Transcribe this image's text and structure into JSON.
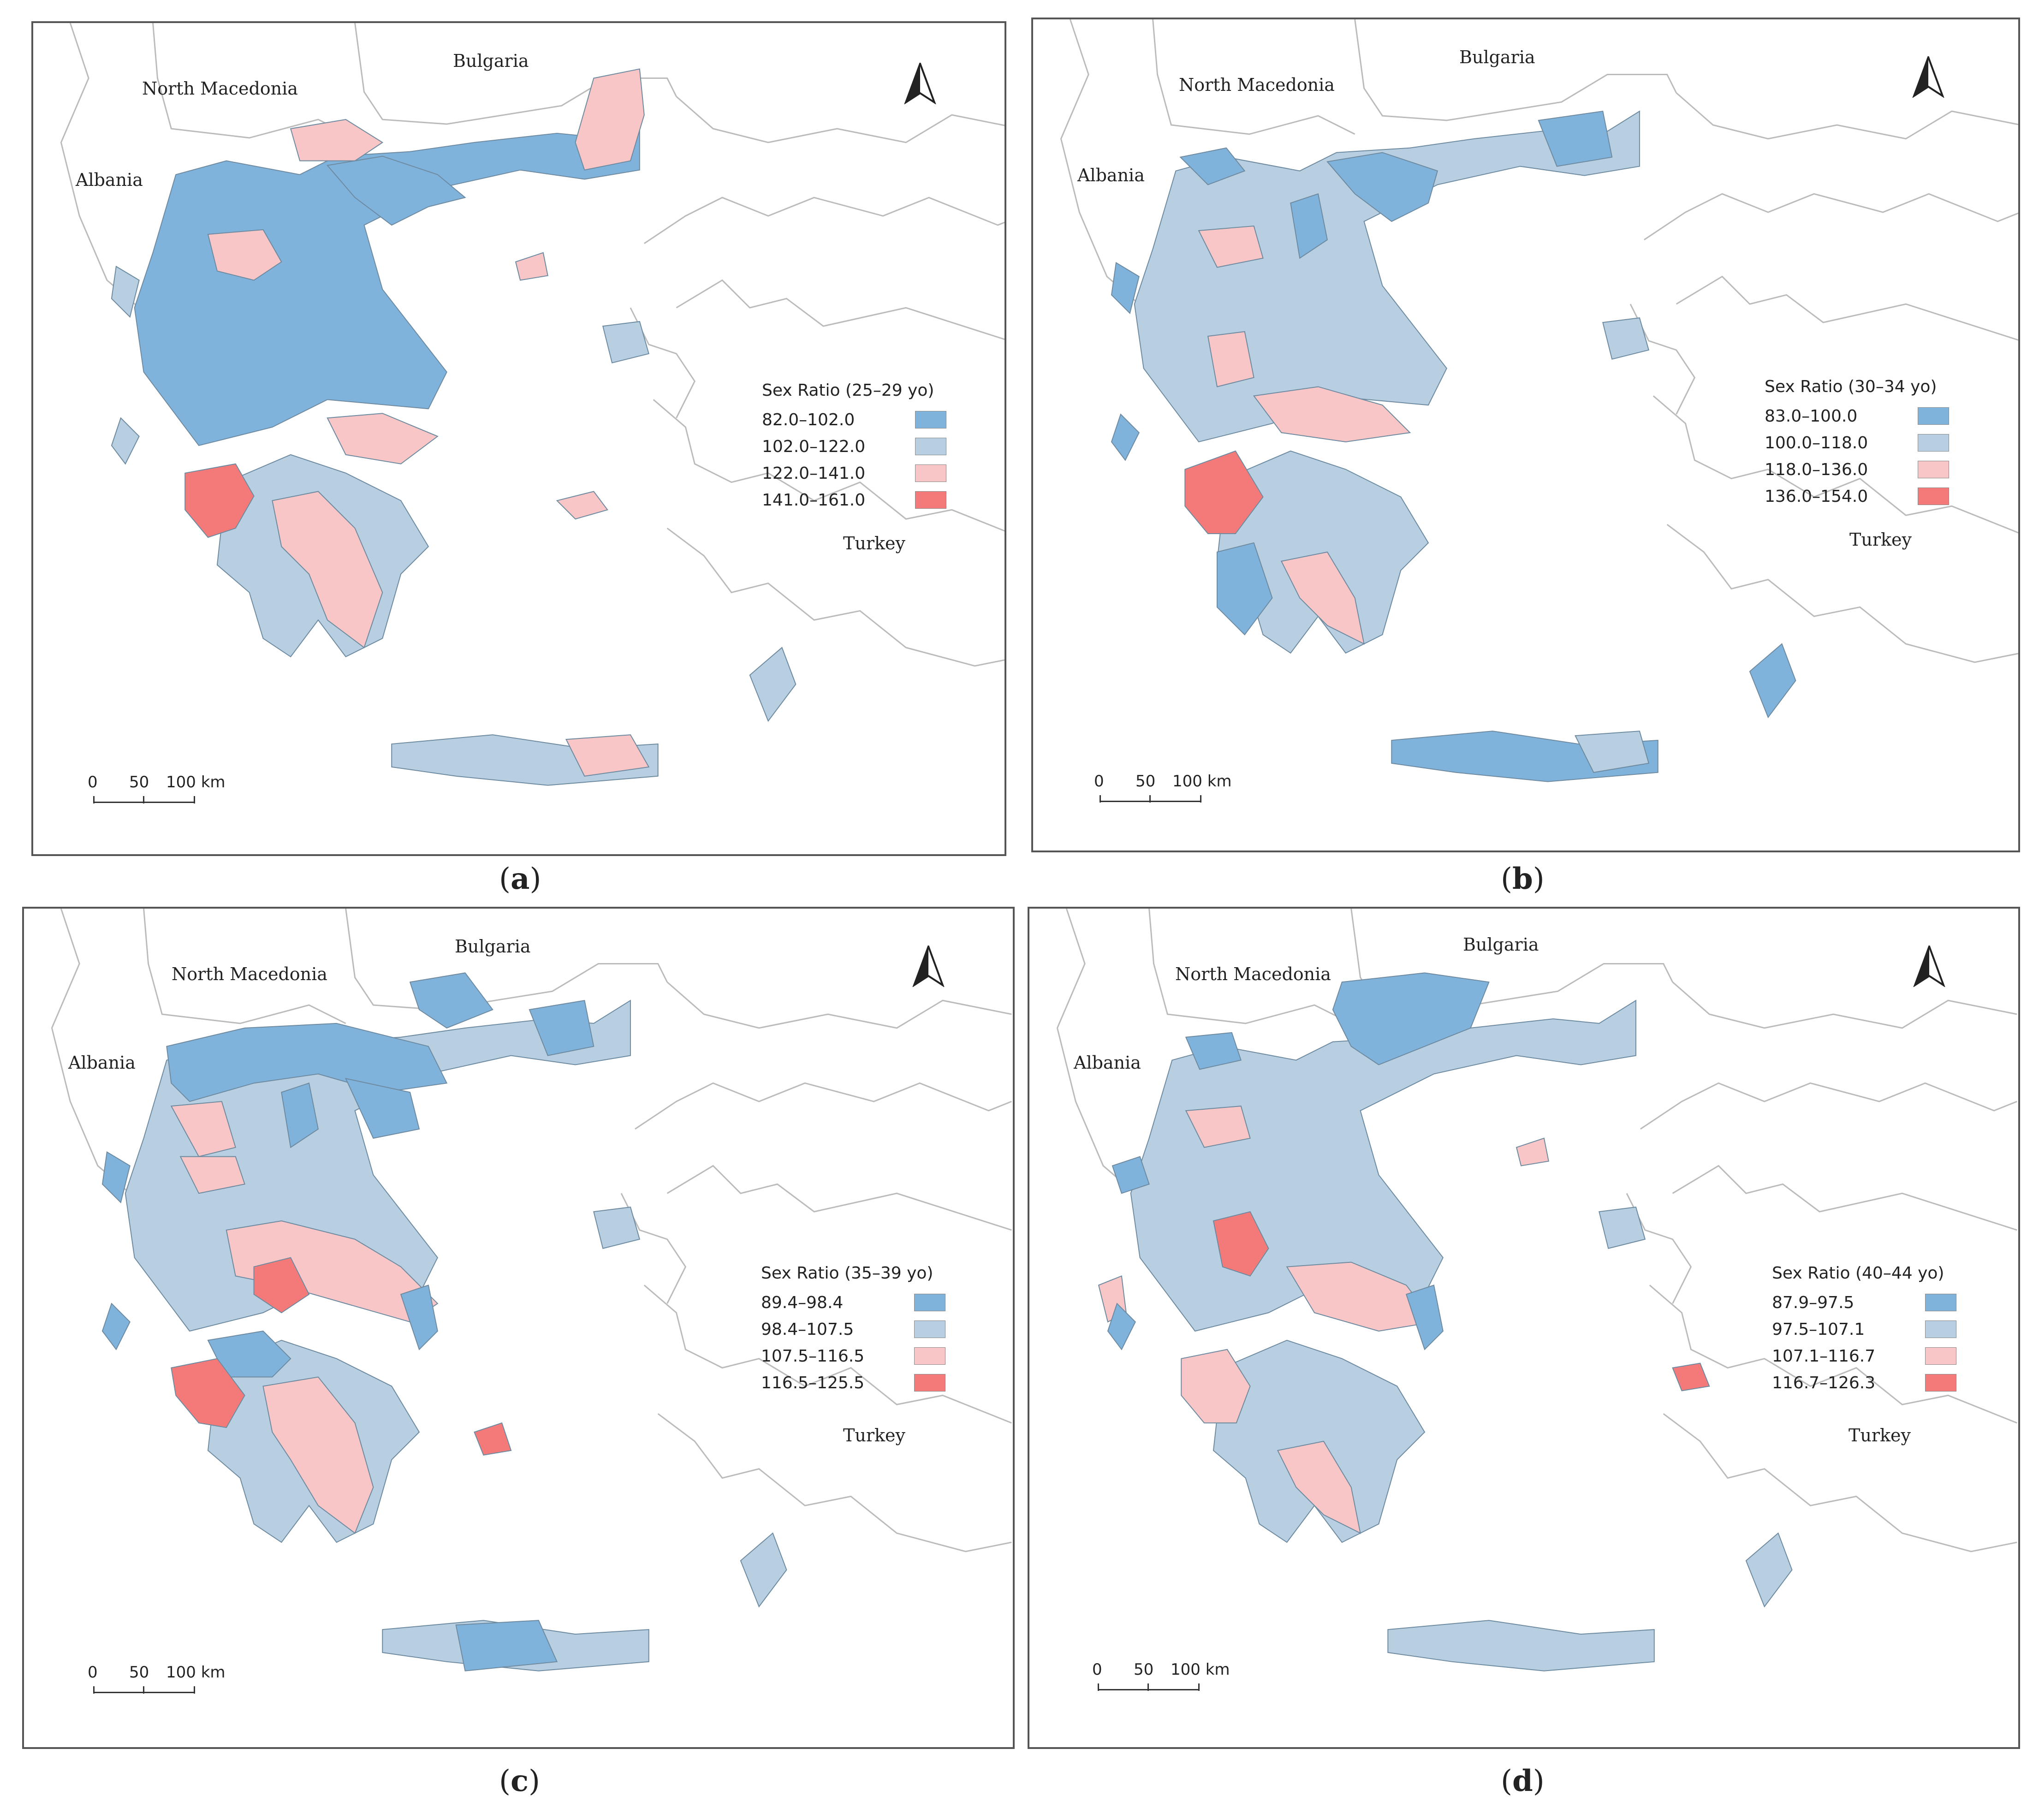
{
  "countries": {
    "bulgaria": "Bulgaria",
    "north_macedonia": "North Macedonia",
    "albania": "Albania",
    "turkey": "Turkey"
  },
  "scale_bar": {
    "zero": "0",
    "fifty": "50",
    "hundred": "100 km"
  },
  "colors": {
    "class1": "#7fb3dc",
    "class2": "#b7cfe0",
    "class3": "#f8c6c6",
    "class4": "#f47a7a"
  },
  "panels": [
    {
      "letter": "a",
      "legend": {
        "title": "Sex Ratio (25–29 yo)",
        "classes": [
          "82.0–102.0",
          "102.0–122.0",
          "122.0–141.0",
          "141.0–161.0"
        ]
      }
    },
    {
      "letter": "b",
      "legend": {
        "title": "Sex Ratio (30–34 yo)",
        "classes": [
          "83.0–100.0",
          "100.0–118.0",
          "118.0–136.0",
          "136.0–154.0"
        ]
      }
    },
    {
      "letter": "c",
      "legend": {
        "title": "Sex Ratio (35–39 yo)",
        "classes": [
          "89.4–98.4",
          "98.4–107.5",
          "107.5–116.5",
          "116.5–125.5"
        ]
      }
    },
    {
      "letter": "d",
      "legend": {
        "title": "Sex Ratio (40–44 yo)",
        "classes": [
          "87.9–97.5",
          "97.5–107.1",
          "107.1–116.7",
          "116.7–126.3"
        ]
      }
    }
  ]
}
